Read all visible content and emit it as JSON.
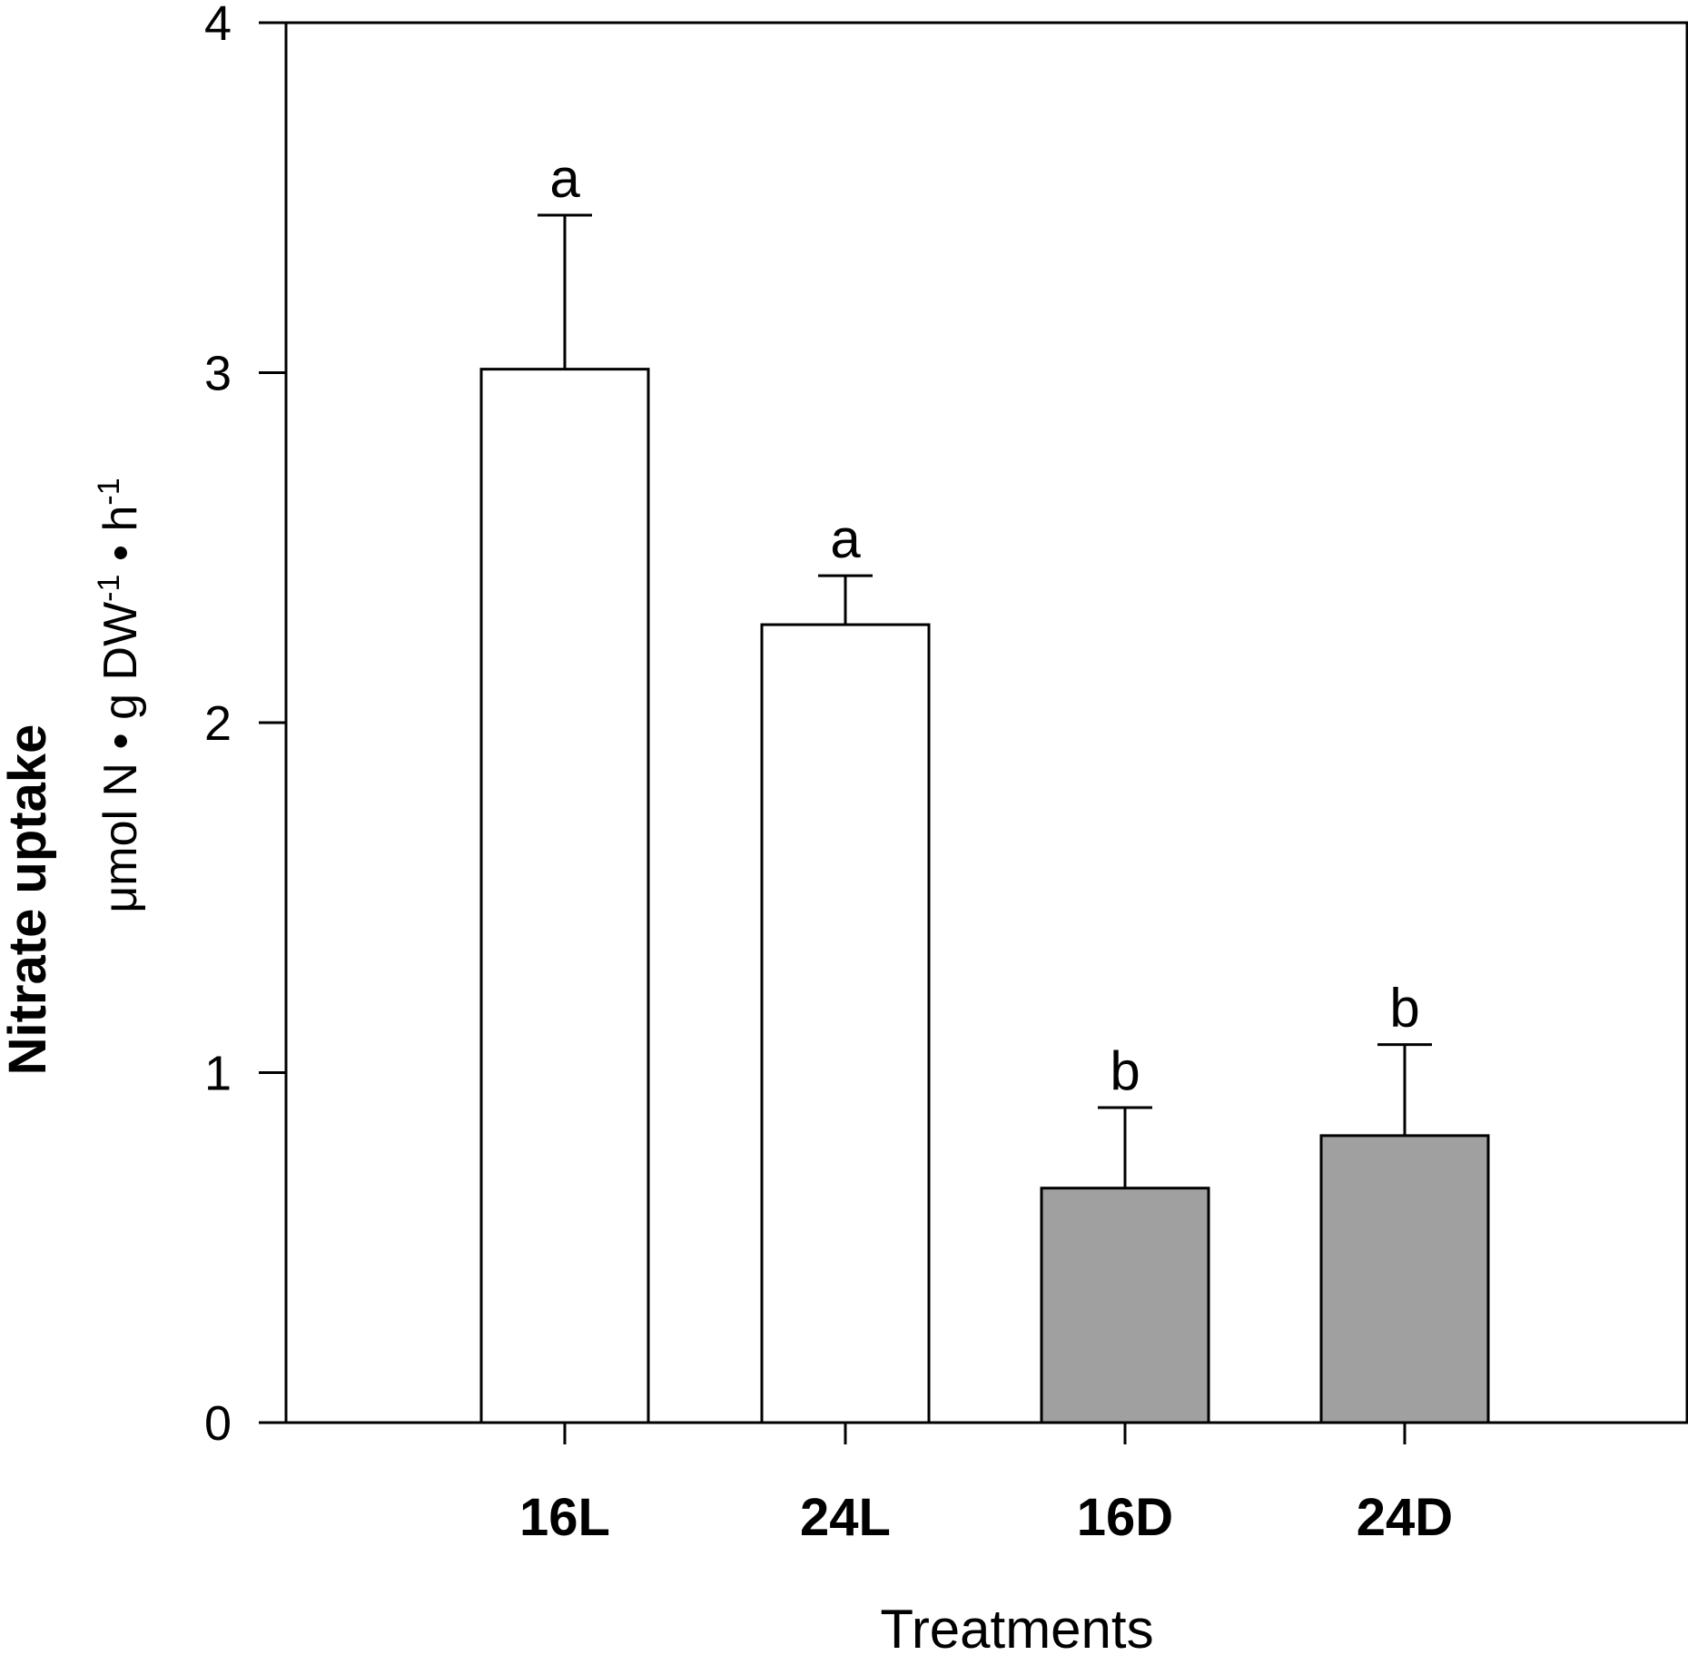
{
  "chart_data": {
    "type": "bar",
    "categories": [
      "16L",
      "24L",
      "16D",
      "24D"
    ],
    "values": [
      3.01,
      2.28,
      0.67,
      0.82
    ],
    "errors": [
      0.44,
      0.14,
      0.23,
      0.26
    ],
    "significance": [
      "a",
      "a",
      "b",
      "b"
    ],
    "bar_colors": [
      "#ffffff",
      "#ffffff",
      "#a0a0a0",
      "#a0a0a0"
    ],
    "xlabel": "Treatments",
    "ylabel": "Nitrate uptake",
    "ylabel_unit": {
      "prefix": "μmol N • g DW",
      "sup1": "-1",
      "middle": " • h",
      "sup2": "-1"
    },
    "ylim": [
      0,
      4
    ],
    "yticks": [
      0,
      1,
      2,
      3,
      4
    ],
    "grid": false,
    "legend": "none"
  }
}
